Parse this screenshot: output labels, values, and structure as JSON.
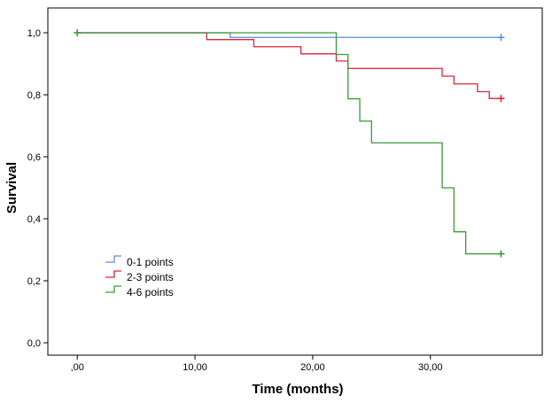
{
  "chart_data": {
    "type": "line",
    "title": "",
    "xlabel": "Time (months)",
    "ylabel": "Survival",
    "xlim": [
      -2.5,
      39.5
    ],
    "ylim": [
      -0.04,
      1.08
    ],
    "x_ticks": [
      0,
      10,
      20,
      30
    ],
    "x_tick_labels": [
      ",00",
      "10,00",
      "20,00",
      "30,00"
    ],
    "y_ticks": [
      0,
      0.2,
      0.4,
      0.6,
      0.8,
      1.0
    ],
    "y_tick_labels": [
      "0,0",
      "0,2",
      "0,4",
      "0,6",
      "0,8",
      "1,0"
    ],
    "grid": false,
    "legend_position": "lower-left",
    "series": [
      {
        "name": "0-1 points",
        "color": "#5b8fd6",
        "step_points": [
          [
            0,
            1.0
          ],
          [
            13,
            0.985
          ],
          [
            36,
            0.985
          ]
        ],
        "censor_marks": [
          [
            36,
            0.985
          ]
        ]
      },
      {
        "name": "2-3 points",
        "color": "#d9243d",
        "step_points": [
          [
            0,
            1.0
          ],
          [
            11,
            0.978
          ],
          [
            15,
            0.955
          ],
          [
            19,
            0.932
          ],
          [
            22,
            0.909
          ],
          [
            23,
            0.885
          ],
          [
            31,
            0.86
          ],
          [
            32,
            0.835
          ],
          [
            34,
            0.81
          ],
          [
            35,
            0.788
          ],
          [
            36,
            0.788
          ]
        ],
        "censor_marks": [
          [
            36,
            0.788
          ]
        ]
      },
      {
        "name": "4-6 points",
        "color": "#3a9a3a",
        "step_points": [
          [
            0,
            1.0
          ],
          [
            22,
            0.93
          ],
          [
            23,
            0.787
          ],
          [
            24,
            0.715
          ],
          [
            25,
            0.645
          ],
          [
            31,
            0.5
          ],
          [
            32,
            0.358
          ],
          [
            33,
            0.287
          ],
          [
            36,
            0.287
          ]
        ],
        "censor_marks": [
          [
            0,
            1.0
          ],
          [
            36,
            0.287
          ]
        ]
      }
    ]
  }
}
